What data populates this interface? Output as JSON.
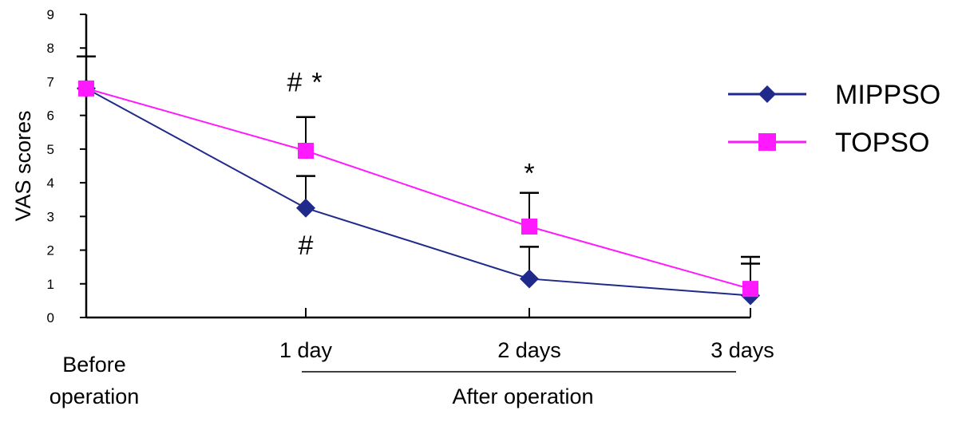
{
  "chart_data": {
    "type": "line",
    "title": "",
    "xlabel": "",
    "ylabel": "VAS scores",
    "ylim": [
      0,
      9
    ],
    "yticks": [
      "0",
      "1",
      "2",
      "3",
      "4",
      "5",
      "6",
      "7",
      "8",
      "9"
    ],
    "categories": [
      [
        "Before",
        "operation"
      ],
      [
        "1 day"
      ],
      [
        "2 days"
      ],
      [
        "3 days"
      ]
    ],
    "group_label": "After operation",
    "grid": false,
    "legend_position": "right",
    "series": [
      {
        "name": "MIPPSO",
        "color": "#1f2a8a",
        "marker": "diamond",
        "values": [
          6.8,
          3.25,
          1.15,
          0.65
        ],
        "error": [
          0.95,
          0.95,
          0.95,
          0.95
        ]
      },
      {
        "name": "TOPSO",
        "color": "#ff19ff",
        "marker": "square",
        "values": [
          6.8,
          4.95,
          2.7,
          0.85
        ],
        "error": [
          0.95,
          1.0,
          1.0,
          0.95
        ]
      }
    ],
    "annotations": [
      {
        "text": "#",
        "category": 1,
        "y": 7.0
      },
      {
        "text": "*",
        "category": 1,
        "y": 7.0
      },
      {
        "text": "#",
        "category": 1,
        "y": 2.15
      },
      {
        "text": "*",
        "category": 2,
        "y": 4.3
      }
    ]
  }
}
